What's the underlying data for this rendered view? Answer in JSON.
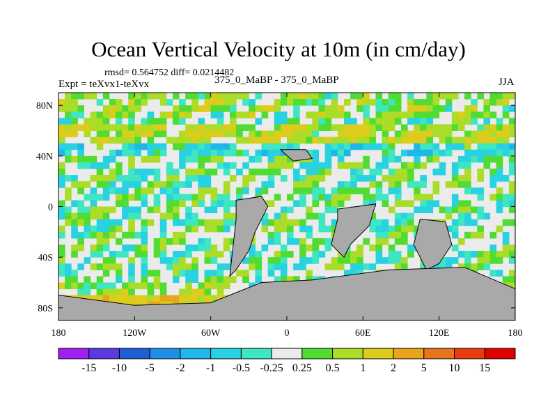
{
  "title": "Ocean Vertical Velocity at 10m (in cm/day)",
  "stats": "rmsd= 0.564752 diff= 0.0214482",
  "left_label": "Expt = teXvx1-teXvx",
  "center_label": "375_0_MaBP - 375_0_MaBP",
  "right_label": "JJA",
  "chart_data": {
    "type": "heatmap",
    "title": "Ocean Vertical Velocity at 10m (in cm/day)",
    "variable": "ocean vertical velocity difference at 10m",
    "units": "cm/day",
    "x_ticks": [
      {
        "value": -180,
        "label": "180"
      },
      {
        "value": -120,
        "label": "120W"
      },
      {
        "value": -60,
        "label": "60W"
      },
      {
        "value": 0,
        "label": "0"
      },
      {
        "value": 60,
        "label": "60E"
      },
      {
        "value": 120,
        "label": "120E"
      },
      {
        "value": 180,
        "label": "180"
      }
    ],
    "y_ticks": [
      {
        "value": 80,
        "label": "80N"
      },
      {
        "value": 40,
        "label": "40N"
      },
      {
        "value": 0,
        "label": "0"
      },
      {
        "value": -40,
        "label": "40S"
      },
      {
        "value": -80,
        "label": "80S"
      }
    ],
    "xlim": [
      -180,
      180
    ],
    "ylim": [
      -90,
      90
    ],
    "colorbar": {
      "levels": [
        "-15",
        "-10",
        "-5",
        "-2",
        "-1",
        "-0.5",
        "-0.25",
        "0.25",
        "0.5",
        "1",
        "2",
        "5",
        "10",
        "15"
      ],
      "colors": [
        "#a020f0",
        "#5a3ae0",
        "#1e5fd8",
        "#1e8fe6",
        "#20b6ea",
        "#28d2e0",
        "#3ee6c2",
        "#ebebeb",
        "#50dc32",
        "#aadc28",
        "#ddcc1c",
        "#e8a41c",
        "#e8741c",
        "#e83c10",
        "#e00000"
      ]
    },
    "land_color": "#a9a9a9",
    "field": {
      "description": "difference field in cm/day; mostly weak (-0.5..0.5) with zonal bands at high latitudes",
      "bands": [
        {
          "lat_min": 70,
          "lat_max": 88,
          "value": 0.3
        },
        {
          "lat_min": 52,
          "lat_max": 66,
          "value": 0.7
        },
        {
          "lat_min": 40,
          "lat_max": 52,
          "value": -0.4
        },
        {
          "lat_min": -70,
          "lat_max": -58,
          "value": 0.4
        },
        {
          "lat_min": -80,
          "lat_max": -70,
          "value": 1.5
        }
      ]
    },
    "land": [
      {
        "name": "south-america",
        "lon": [
          -40,
          -20,
          -15,
          -25,
          -30,
          -40,
          -45,
          -40
        ],
        "lat": [
          5,
          8,
          0,
          -20,
          -35,
          -50,
          -55,
          -10
        ]
      },
      {
        "name": "africa",
        "lon": [
          40,
          70,
          65,
          50,
          45,
          35,
          40
        ],
        "lat": [
          -2,
          2,
          -15,
          -30,
          -40,
          -30,
          -10
        ]
      },
      {
        "name": "australia",
        "lon": [
          105,
          125,
          130,
          120,
          110,
          100
        ],
        "lat": [
          -10,
          -12,
          -30,
          -45,
          -50,
          -30
        ]
      },
      {
        "name": "antarctica",
        "lon": [
          -180,
          -120,
          -60,
          -20,
          20,
          80,
          140,
          180,
          180,
          -180
        ],
        "lat": [
          -70,
          -78,
          -76,
          -60,
          -58,
          -50,
          -48,
          -65,
          -90,
          -90
        ]
      },
      {
        "name": "north-island",
        "lon": [
          -5,
          15,
          20,
          5
        ],
        "lat": [
          45,
          45,
          38,
          36
        ]
      }
    ]
  }
}
